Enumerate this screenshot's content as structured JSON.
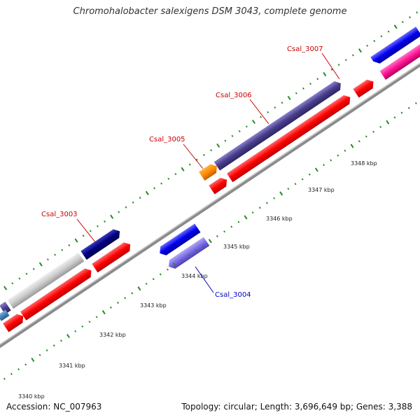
{
  "header": {
    "title": "Chromohalobacter salexigens DSM 3043, complete genome"
  },
  "footer": {
    "accession": "Accession: NC_007963",
    "summary": "Topology: circular; Length: 3,696,649 bp; Genes: 3,388"
  },
  "scale": {
    "tick_labels": [
      "3340 kbp",
      "3341 kbp",
      "3342 kbp",
      "3343 kbp",
      "3344 kbp",
      "3345 kbp",
      "3346 kbp",
      "3347 kbp",
      "3348 kbp"
    ]
  },
  "genes": [
    {
      "label": "Csal_3003",
      "color": "#cc0000"
    },
    {
      "label": "Csal_3004",
      "color": "#0000cc"
    },
    {
      "label": "Csal_3005",
      "color": "#cc0000"
    },
    {
      "label": "Csal_3006",
      "color": "#cc0000"
    },
    {
      "label": "Csal_3007",
      "color": "#cc0000"
    }
  ],
  "colors": {
    "backbone": "#888888",
    "ticks": "#228b22",
    "cds": "#ff0000",
    "label_red": "#cc0000",
    "label_blue": "#0000cc"
  }
}
